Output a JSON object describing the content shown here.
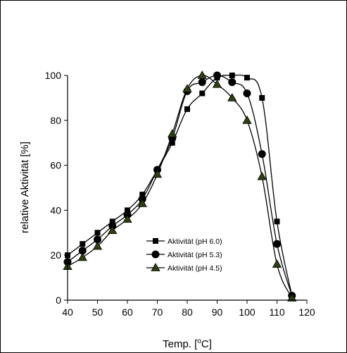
{
  "chart_data": {
    "type": "line",
    "xlabel_main": "Temp. [",
    "xlabel_sup": "o",
    "xlabel_tail": "C]",
    "ylabel": "relative Aktivität [%]",
    "xlim": [
      40,
      120
    ],
    "ylim": [
      0,
      100
    ],
    "x_ticks": [
      "40",
      "50",
      "60",
      "70",
      "80",
      "90",
      "100",
      "110",
      "120"
    ],
    "y_ticks": [
      "0",
      "20",
      "40",
      "60",
      "80",
      "100"
    ],
    "grid": false,
    "legend_position": "lower-left inside plot",
    "series": [
      {
        "name": "Aktivität (pH 6.0)",
        "marker": "square",
        "color": "#000000",
        "x": [
          40,
          45,
          50,
          55,
          60,
          65,
          70,
          75,
          80,
          85,
          90,
          95,
          100,
          105,
          110,
          115
        ],
        "y": [
          20,
          25,
          30,
          35,
          40,
          47,
          58,
          70,
          85,
          92,
          99,
          100,
          99,
          90,
          35,
          2
        ]
      },
      {
        "name": "Aktivität (pH 5.3)",
        "marker": "circle",
        "color": "#000000",
        "x": [
          40,
          45,
          50,
          55,
          60,
          65,
          70,
          75,
          80,
          85,
          90,
          95,
          100,
          105,
          110,
          115
        ],
        "y": [
          17,
          22,
          27,
          33,
          38,
          45,
          58,
          72,
          93,
          97,
          100,
          97,
          92,
          65,
          25,
          2
        ]
      },
      {
        "name": "Aktivität (pH 4.5)",
        "marker": "triangle",
        "color": "#2e3f12",
        "x": [
          40,
          45,
          50,
          55,
          60,
          65,
          70,
          75,
          80,
          85,
          90,
          95,
          100,
          105,
          110,
          115
        ],
        "y": [
          15,
          19,
          24,
          31,
          36,
          43,
          56,
          74,
          94,
          100,
          96,
          90,
          80,
          55,
          16,
          1
        ]
      }
    ]
  }
}
